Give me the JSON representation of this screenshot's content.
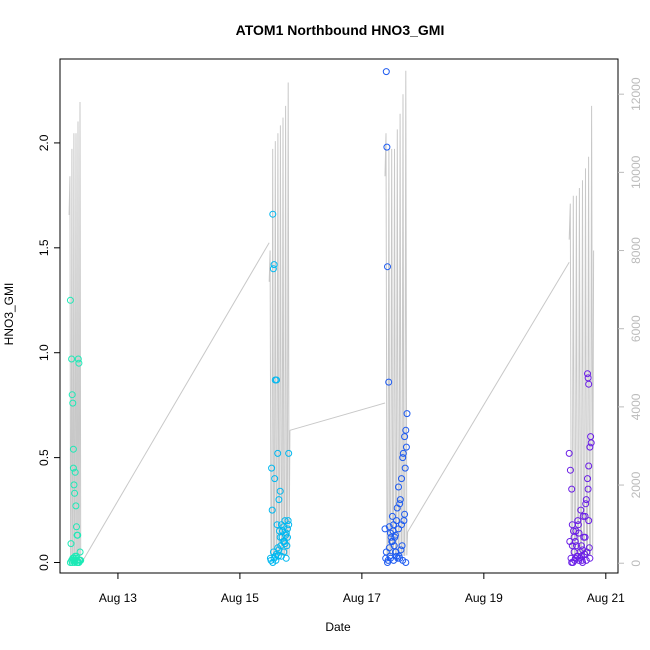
{
  "chart_data": {
    "type": "scatter",
    "title": "ATOM1 Northbound HNO3_GMI",
    "xlabel": "Date",
    "ylabel": "HNO3_GMI",
    "x_unit": "day of August 2016",
    "xlim": [
      12.05,
      21.2
    ],
    "ylim": [
      -0.05,
      2.4
    ],
    "y2lim": [
      -250,
      12900
    ],
    "x_ticks": [
      {
        "value": 13,
        "label": "Aug 13"
      },
      {
        "value": 15,
        "label": "Aug 15"
      },
      {
        "value": 17,
        "label": "Aug 17"
      },
      {
        "value": 19,
        "label": "Aug 19"
      },
      {
        "value": 21,
        "label": "Aug 21"
      }
    ],
    "y_ticks": [
      {
        "value": 0,
        "label": "0.0"
      },
      {
        "value": 0.5,
        "label": "0.5"
      },
      {
        "value": 1.0,
        "label": "1.0"
      },
      {
        "value": 1.5,
        "label": "1.5"
      },
      {
        "value": 2.0,
        "label": "2.0"
      }
    ],
    "y2_ticks": [
      {
        "value": 0,
        "label": "0"
      },
      {
        "value": 2000,
        "label": "2000"
      },
      {
        "value": 4000,
        "label": "4000"
      },
      {
        "value": 6000,
        "label": "6000"
      },
      {
        "value": 8000,
        "label": "8000"
      },
      {
        "value": 10000,
        "label": "10000"
      },
      {
        "value": 12000,
        "label": "12000"
      }
    ],
    "grid": false,
    "line_color": "#cccccc",
    "series": [
      {
        "color": "#1de9b6",
        "x": [
          12.22,
          12.24,
          12.25,
          12.26,
          12.27,
          12.28,
          12.29,
          12.3,
          12.31,
          12.32,
          12.33,
          12.34,
          12.35,
          12.36,
          12.38,
          12.39,
          12.27,
          12.31,
          12.34,
          12.23,
          12.26,
          12.29,
          12.32,
          12.35,
          12.24,
          12.28,
          12.33,
          12.37,
          12.3,
          12.25,
          12.27,
          12.29,
          12.31,
          12.33,
          12.36,
          12.38,
          12.22,
          12.26,
          12.3
        ],
        "y": [
          1.25,
          0.97,
          0.8,
          0.76,
          0.54,
          0.37,
          0.33,
          0.43,
          0.27,
          0.17,
          0.13,
          0.13,
          0.97,
          0.95,
          0.05,
          0.01,
          0.45,
          0.02,
          0.0,
          0.09,
          0.02,
          0.01,
          0.03,
          0.0,
          0.01,
          0.02,
          0.0,
          0.01,
          0.03,
          0.0,
          0.01,
          0.0,
          0.02,
          0.01,
          0.0,
          0.01,
          0.0,
          0.02,
          0.01
        ]
      },
      {
        "color": "#00b8f0",
        "x": [
          15.5,
          15.52,
          15.54,
          15.55,
          15.56,
          15.58,
          15.6,
          15.62,
          15.64,
          15.66,
          15.68,
          15.7,
          15.72,
          15.74,
          15.76,
          15.78,
          15.8,
          15.53,
          15.57,
          15.61,
          15.65,
          15.69,
          15.73,
          15.77,
          15.51,
          15.56,
          15.6,
          15.64,
          15.68,
          15.72,
          15.76,
          15.8,
          15.54,
          15.59,
          15.63,
          15.67,
          15.71,
          15.75,
          15.79,
          15.55,
          15.62,
          15.7,
          15.78,
          15.58,
          15.66,
          15.74
        ],
        "y": [
          0.02,
          0.45,
          1.66,
          1.4,
          1.42,
          0.87,
          0.87,
          0.52,
          0.3,
          0.34,
          0.18,
          0.15,
          0.17,
          0.2,
          0.14,
          0.12,
          0.52,
          0.25,
          0.4,
          0.18,
          0.15,
          0.12,
          0.1,
          0.08,
          0.01,
          0.02,
          0.04,
          0.06,
          0.03,
          0.05,
          0.02,
          0.18,
          0.0,
          0.01,
          0.03,
          0.08,
          0.1,
          0.13,
          0.2,
          0.05,
          0.07,
          0.15,
          0.16,
          0.03,
          0.12,
          0.09
        ]
      },
      {
        "color": "#1e5bf0",
        "x": [
          17.38,
          17.4,
          17.41,
          17.42,
          17.44,
          17.45,
          17.47,
          17.48,
          17.5,
          17.52,
          17.53,
          17.55,
          17.57,
          17.58,
          17.6,
          17.62,
          17.63,
          17.65,
          17.67,
          17.68,
          17.7,
          17.72,
          17.74,
          17.39,
          17.43,
          17.46,
          17.49,
          17.51,
          17.54,
          17.56,
          17.59,
          17.61,
          17.64,
          17.66,
          17.69,
          17.71,
          17.73,
          17.42,
          17.47,
          17.52,
          17.57,
          17.62,
          17.67,
          17.72,
          17.4,
          17.45,
          17.5,
          17.55,
          17.6,
          17.65,
          17.7
        ],
        "y": [
          0.16,
          2.34,
          1.98,
          1.41,
          0.86,
          0.17,
          0.14,
          0.12,
          0.22,
          0.18,
          0.08,
          0.05,
          0.2,
          0.26,
          0.36,
          0.28,
          0.3,
          0.4,
          0.5,
          0.52,
          0.6,
          0.63,
          0.71,
          0.02,
          0.01,
          0.03,
          0.1,
          0.15,
          0.12,
          0.05,
          0.02,
          0.03,
          0.06,
          0.08,
          0.2,
          0.45,
          0.55,
          0.0,
          0.02,
          0.01,
          0.03,
          0.02,
          0.01,
          0.0,
          0.05,
          0.07,
          0.1,
          0.13,
          0.16,
          0.18,
          0.23
        ]
      },
      {
        "color": "#6a1ee6",
        "x": [
          20.4,
          20.42,
          20.44,
          20.45,
          20.47,
          20.48,
          20.5,
          20.52,
          20.54,
          20.56,
          20.58,
          20.6,
          20.62,
          20.64,
          20.66,
          20.68,
          20.7,
          20.72,
          20.74,
          20.76,
          20.43,
          20.46,
          20.49,
          20.53,
          20.57,
          20.61,
          20.65,
          20.69,
          20.73,
          20.41,
          20.45,
          20.51,
          20.55,
          20.59,
          20.63,
          20.67,
          20.71,
          20.75,
          20.44,
          20.5,
          20.56,
          20.62,
          20.68,
          20.74,
          20.48,
          20.54,
          20.6,
          20.66,
          20.72,
          20.7,
          20.71,
          20.72
        ],
        "y": [
          0.52,
          0.44,
          0.35,
          0.18,
          0.15,
          0.12,
          0.1,
          0.08,
          0.2,
          0.14,
          0.05,
          0.03,
          0.06,
          0.12,
          0.22,
          0.3,
          0.4,
          0.46,
          0.55,
          0.57,
          0.02,
          0.0,
          0.01,
          0.03,
          0.02,
          0.01,
          0.04,
          0.05,
          0.07,
          0.1,
          0.08,
          0.15,
          0.18,
          0.25,
          0.22,
          0.28,
          0.35,
          0.6,
          0.0,
          0.02,
          0.01,
          0.0,
          0.01,
          0.02,
          0.05,
          0.03,
          0.08,
          0.12,
          0.2,
          0.9,
          0.88,
          0.85
        ]
      }
    ],
    "secondary_line": {
      "color": "#c8c8c8",
      "flights": [
        {
          "x_start": 12.2,
          "x_end": 12.4,
          "peaks": [
            9900,
            10600,
            11000,
            11000,
            11300,
            11800
          ],
          "return_to": 0
        },
        {
          "x_start": 15.48,
          "x_end": 15.82,
          "peaks": [
            8000,
            10600,
            10800,
            11000,
            11200,
            11400,
            11700,
            12300
          ],
          "return_to": 3400
        },
        {
          "x_start": 17.38,
          "x_end": 17.75,
          "peaks": [
            11000,
            10600,
            10600,
            10600,
            11100,
            11500,
            12000,
            12600
          ],
          "return_to": 800
        },
        {
          "x_start": 20.4,
          "x_end": 20.8,
          "peaks": [
            9200,
            9400,
            9400,
            9600,
            9800,
            10100,
            10400,
            11700
          ],
          "return_to": 8000
        }
      ],
      "connectors": [
        {
          "x1": 12.4,
          "y1": 0,
          "x2": 15.48,
          "y2": 8200
        },
        {
          "x1": 15.82,
          "y1": 3400,
          "x2": 17.38,
          "y2": 4100
        },
        {
          "x1": 17.75,
          "y1": 800,
          "x2": 20.4,
          "y2": 7700
        }
      ]
    }
  }
}
